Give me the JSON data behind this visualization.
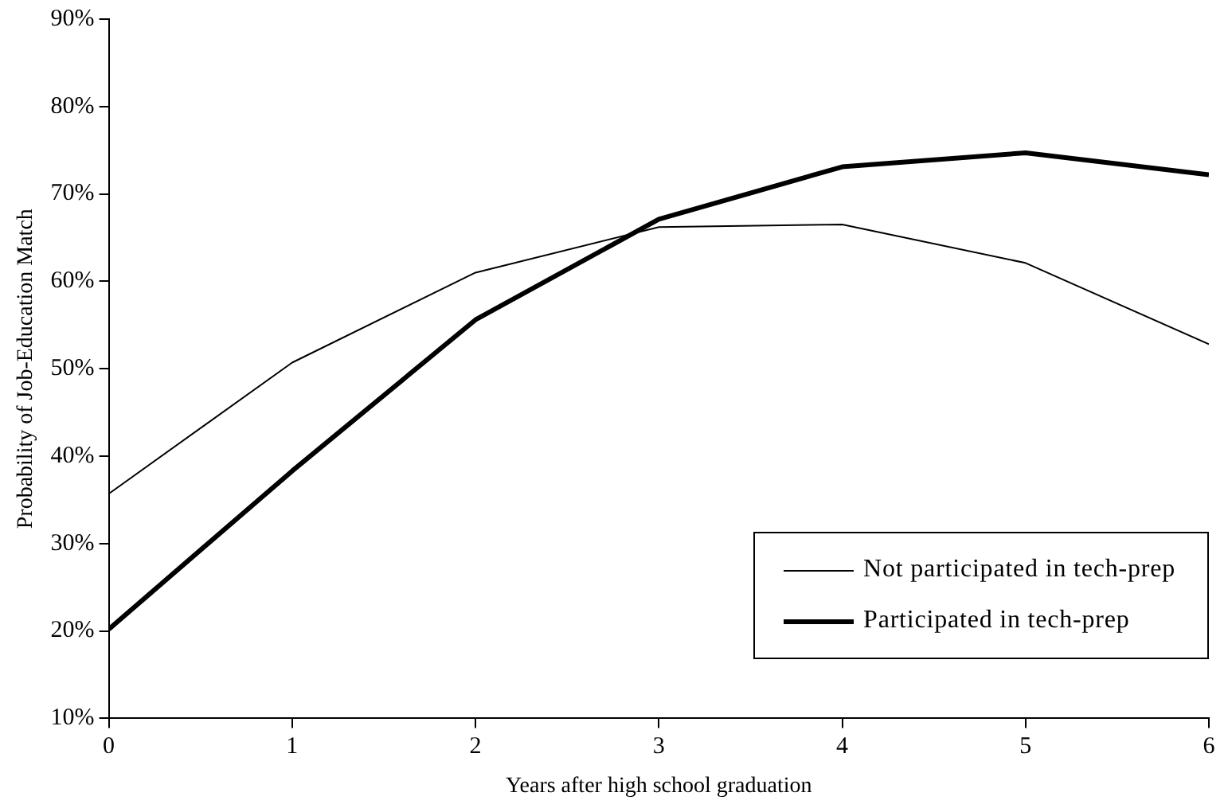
{
  "chart_data": {
    "type": "line",
    "xlabel": "Years after high school graduation",
    "ylabel": "Probability of Job-Education Match",
    "x": [
      0,
      1,
      2,
      3,
      4,
      5,
      6
    ],
    "series": [
      {
        "name": "Not participated in tech-prep",
        "color": "#000000",
        "values": [
          35.7,
          50.7,
          61.0,
          66.2,
          66.5,
          62.1,
          52.8
        ]
      },
      {
        "name": "Participated in tech-prep",
        "color": "#000000",
        "values": [
          20.2,
          38.3,
          55.6,
          67.1,
          73.1,
          74.7,
          72.2
        ]
      }
    ],
    "xlim": [
      0,
      6
    ],
    "xticks": [
      0,
      1,
      2,
      3,
      4,
      5,
      6
    ],
    "ylim": [
      10,
      90
    ],
    "yticks": [
      {
        "value": 10,
        "label": "10%"
      },
      {
        "value": 20,
        "label": "20%"
      },
      {
        "value": 30,
        "label": "30%"
      },
      {
        "value": 40,
        "label": "40%"
      },
      {
        "value": 50,
        "label": "50%"
      },
      {
        "value": 60,
        "label": "60%"
      },
      {
        "value": 70,
        "label": "70%"
      },
      {
        "value": 80,
        "label": "80%"
      },
      {
        "value": 90,
        "label": "90%"
      }
    ],
    "grid": false,
    "legend": "bottom right",
    "marker": "none",
    "line_style": "solid"
  }
}
